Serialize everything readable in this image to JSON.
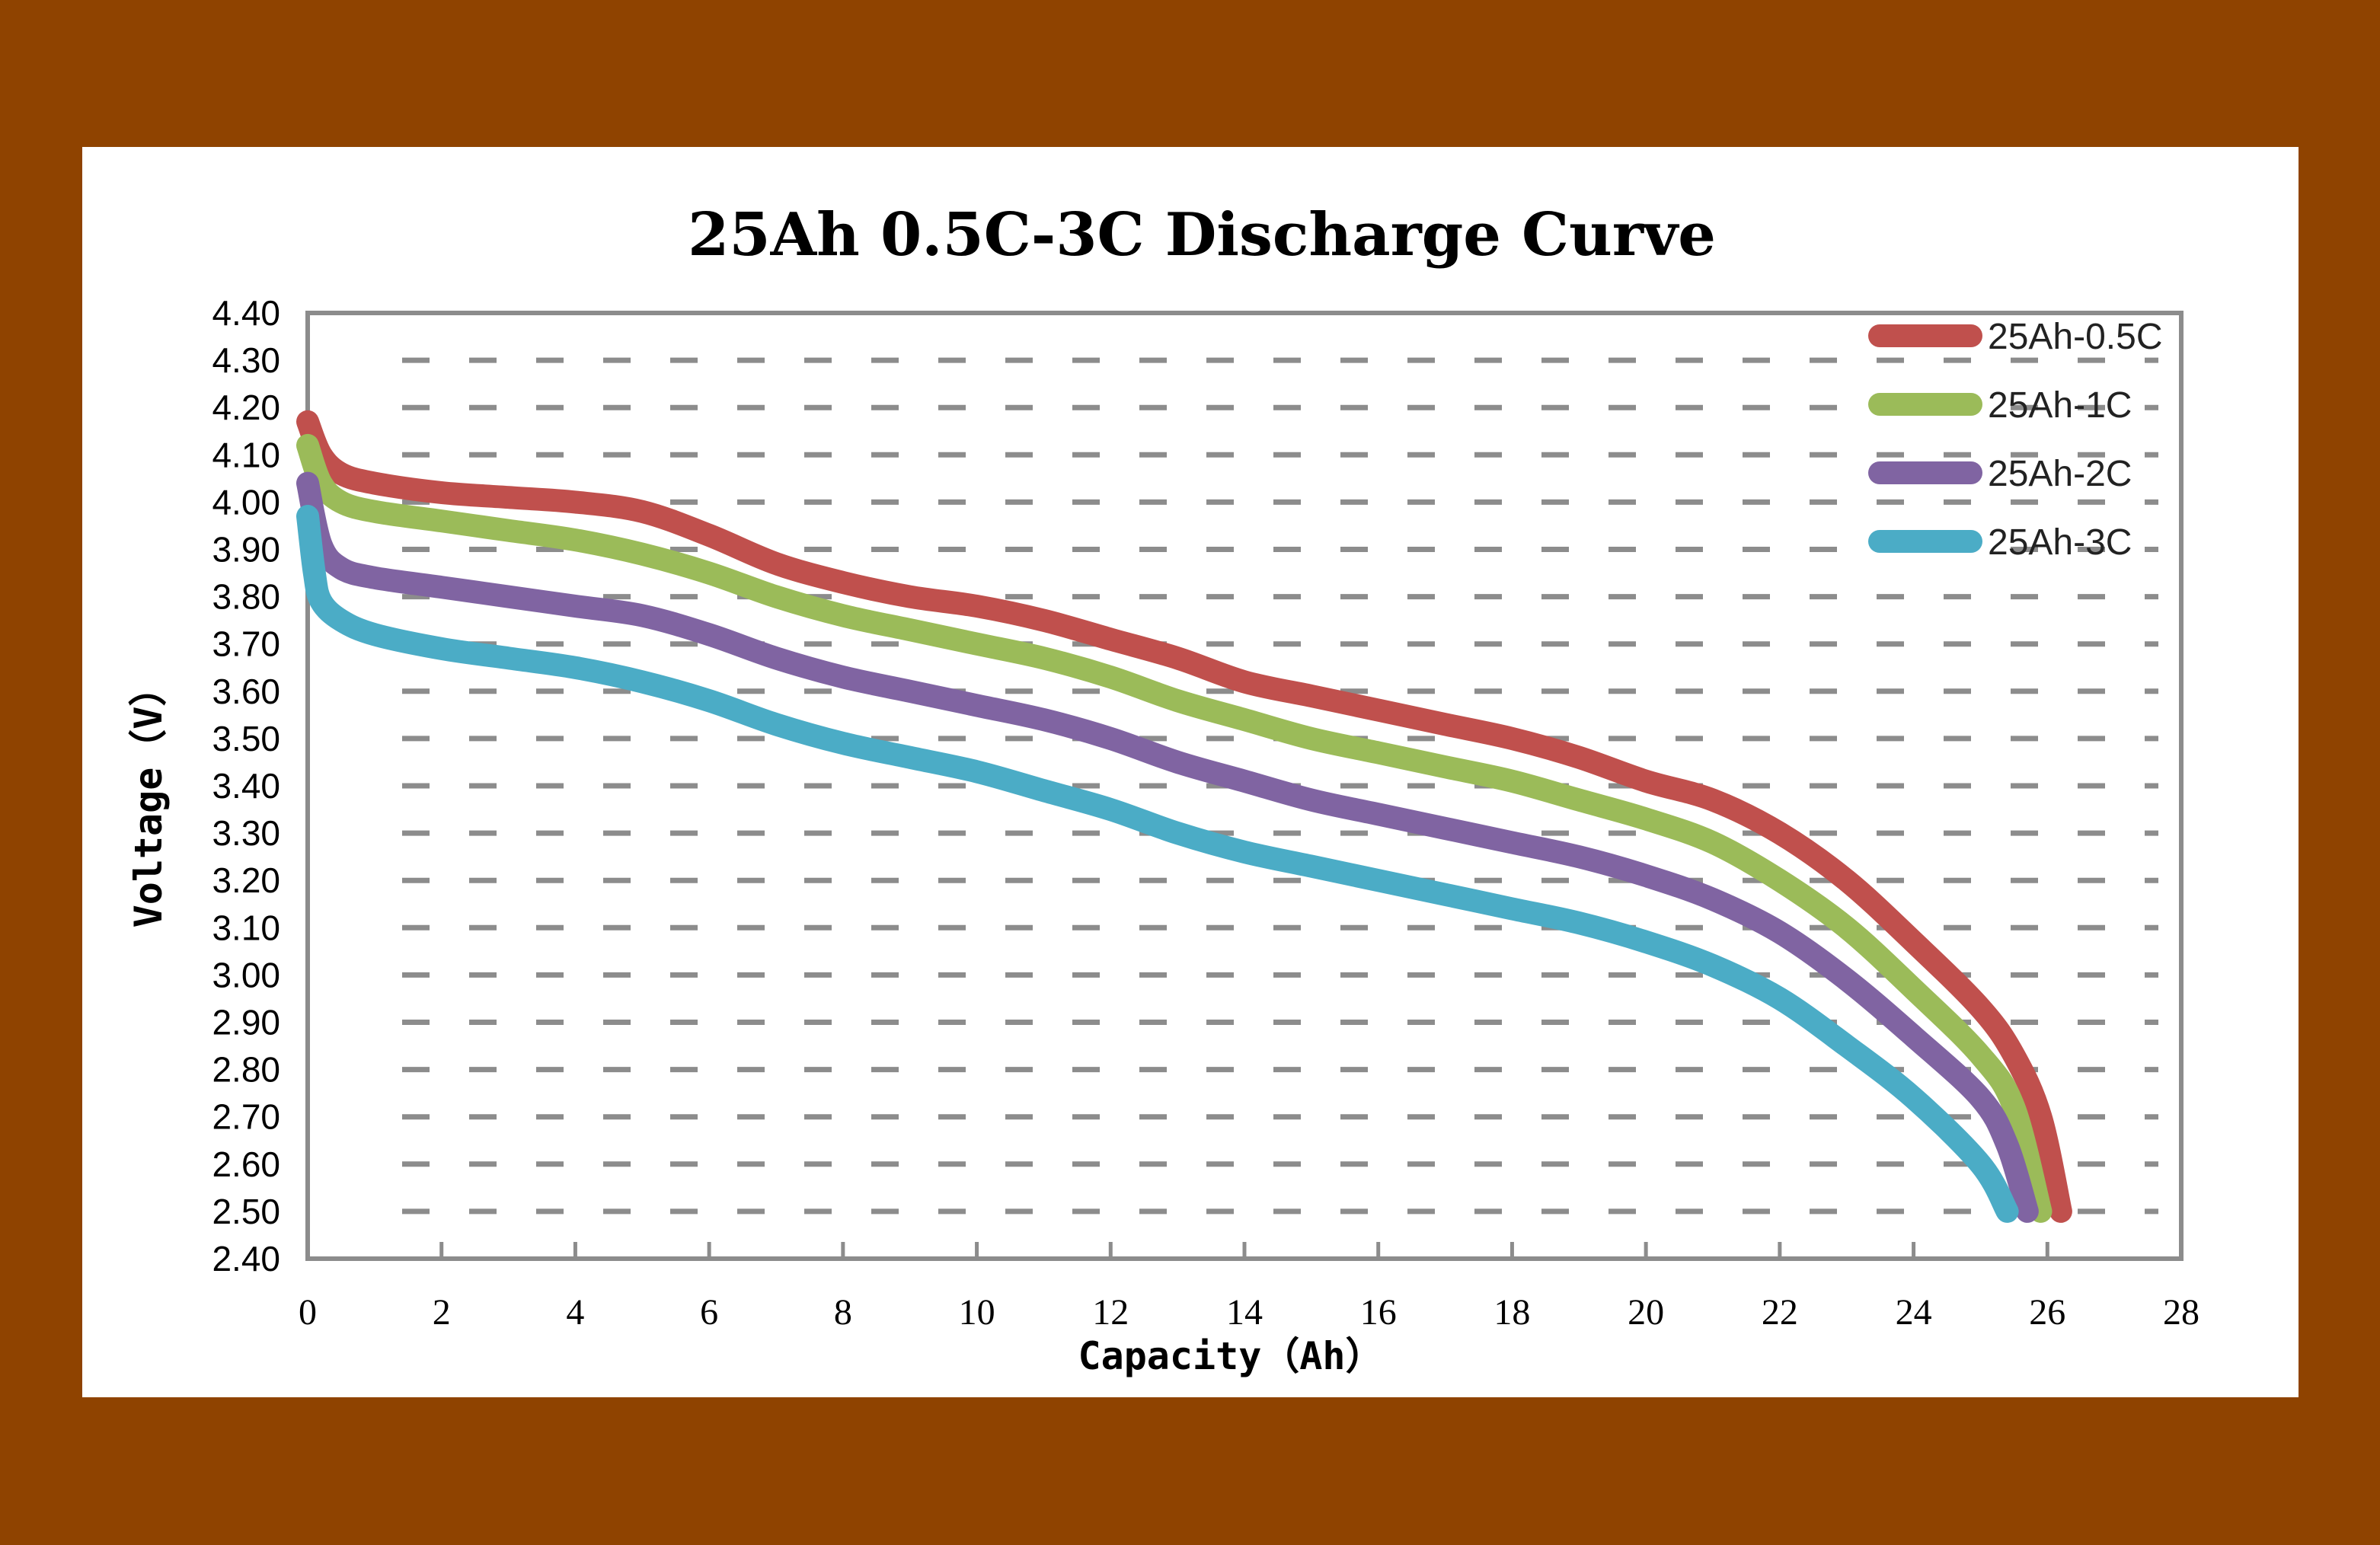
{
  "chart_data": {
    "type": "line",
    "title": "25Ah 0.5C-3C Discharge Curve",
    "xlabel": "Capacity（Ah）",
    "ylabel": "Voltage（V）",
    "xlim": [
      0,
      28
    ],
    "ylim": [
      2.4,
      4.4
    ],
    "xticks": [
      "0",
      "2",
      "4",
      "6",
      "8",
      "10",
      "12",
      "14",
      "16",
      "18",
      "20",
      "22",
      "24",
      "26",
      "28"
    ],
    "yticks": [
      "2.40",
      "2.50",
      "2.60",
      "2.70",
      "2.80",
      "2.90",
      "3.00",
      "3.10",
      "3.20",
      "3.30",
      "3.40",
      "3.50",
      "3.60",
      "3.70",
      "3.80",
      "3.90",
      "4.00",
      "4.10",
      "4.20",
      "4.30",
      "4.40"
    ],
    "grid": "horizontal dashed",
    "legend_position": "top-right",
    "series": [
      {
        "name": "25Ah-0.5C",
        "color": "#c0504d",
        "points": [
          [
            0,
            4.17
          ],
          [
            0.2,
            4.1
          ],
          [
            0.5,
            4.06
          ],
          [
            1,
            4.04
          ],
          [
            2,
            4.02
          ],
          [
            3,
            4.01
          ],
          [
            4,
            4.0
          ],
          [
            5,
            3.98
          ],
          [
            6,
            3.93
          ],
          [
            7,
            3.87
          ],
          [
            8,
            3.83
          ],
          [
            9,
            3.8
          ],
          [
            10,
            3.78
          ],
          [
            11,
            3.75
          ],
          [
            12,
            3.71
          ],
          [
            13,
            3.67
          ],
          [
            14,
            3.62
          ],
          [
            15,
            3.59
          ],
          [
            16,
            3.56
          ],
          [
            17,
            3.53
          ],
          [
            18,
            3.5
          ],
          [
            19,
            3.46
          ],
          [
            20,
            3.41
          ],
          [
            21,
            3.37
          ],
          [
            22,
            3.3
          ],
          [
            23,
            3.2
          ],
          [
            24,
            3.07
          ],
          [
            25,
            2.93
          ],
          [
            25.5,
            2.83
          ],
          [
            25.9,
            2.7
          ],
          [
            26.2,
            2.5
          ]
        ]
      },
      {
        "name": "25Ah-1C",
        "color": "#9bbb59",
        "points": [
          [
            0,
            4.12
          ],
          [
            0.2,
            4.04
          ],
          [
            0.5,
            4.0
          ],
          [
            1,
            3.98
          ],
          [
            2,
            3.96
          ],
          [
            3,
            3.94
          ],
          [
            4,
            3.92
          ],
          [
            5,
            3.89
          ],
          [
            6,
            3.85
          ],
          [
            7,
            3.8
          ],
          [
            8,
            3.76
          ],
          [
            9,
            3.73
          ],
          [
            10,
            3.7
          ],
          [
            11,
            3.67
          ],
          [
            12,
            3.63
          ],
          [
            13,
            3.58
          ],
          [
            14,
            3.54
          ],
          [
            15,
            3.5
          ],
          [
            16,
            3.47
          ],
          [
            17,
            3.44
          ],
          [
            18,
            3.41
          ],
          [
            19,
            3.37
          ],
          [
            20,
            3.33
          ],
          [
            21,
            3.28
          ],
          [
            22,
            3.2
          ],
          [
            23,
            3.1
          ],
          [
            24,
            2.97
          ],
          [
            25,
            2.83
          ],
          [
            25.5,
            2.72
          ],
          [
            25.9,
            2.5
          ]
        ]
      },
      {
        "name": "25Ah-2C",
        "color": "#8064a2",
        "points": [
          [
            0,
            4.04
          ],
          [
            0.2,
            3.91
          ],
          [
            0.5,
            3.86
          ],
          [
            1,
            3.84
          ],
          [
            2,
            3.82
          ],
          [
            3,
            3.8
          ],
          [
            4,
            3.78
          ],
          [
            5,
            3.76
          ],
          [
            6,
            3.72
          ],
          [
            7,
            3.67
          ],
          [
            8,
            3.63
          ],
          [
            9,
            3.6
          ],
          [
            10,
            3.57
          ],
          [
            11,
            3.54
          ],
          [
            12,
            3.5
          ],
          [
            13,
            3.45
          ],
          [
            14,
            3.41
          ],
          [
            15,
            3.37
          ],
          [
            16,
            3.34
          ],
          [
            17,
            3.31
          ],
          [
            18,
            3.28
          ],
          [
            19,
            3.25
          ],
          [
            20,
            3.21
          ],
          [
            21,
            3.16
          ],
          [
            22,
            3.09
          ],
          [
            23,
            2.99
          ],
          [
            24,
            2.87
          ],
          [
            25,
            2.74
          ],
          [
            25.4,
            2.64
          ],
          [
            25.7,
            2.5
          ]
        ]
      },
      {
        "name": "25Ah-3C",
        "color": "#4bacc6",
        "points": [
          [
            0,
            3.97
          ],
          [
            0.1,
            3.85
          ],
          [
            0.2,
            3.79
          ],
          [
            0.5,
            3.75
          ],
          [
            1,
            3.72
          ],
          [
            2,
            3.69
          ],
          [
            3,
            3.67
          ],
          [
            4,
            3.65
          ],
          [
            5,
            3.62
          ],
          [
            6,
            3.58
          ],
          [
            7,
            3.53
          ],
          [
            8,
            3.49
          ],
          [
            9,
            3.46
          ],
          [
            10,
            3.43
          ],
          [
            11,
            3.39
          ],
          [
            12,
            3.35
          ],
          [
            13,
            3.3
          ],
          [
            14,
            3.26
          ],
          [
            15,
            3.23
          ],
          [
            16,
            3.2
          ],
          [
            17,
            3.17
          ],
          [
            18,
            3.14
          ],
          [
            19,
            3.11
          ],
          [
            20,
            3.07
          ],
          [
            21,
            3.02
          ],
          [
            22,
            2.95
          ],
          [
            23,
            2.85
          ],
          [
            24,
            2.74
          ],
          [
            25,
            2.6
          ],
          [
            25.4,
            2.5
          ]
        ]
      }
    ]
  }
}
